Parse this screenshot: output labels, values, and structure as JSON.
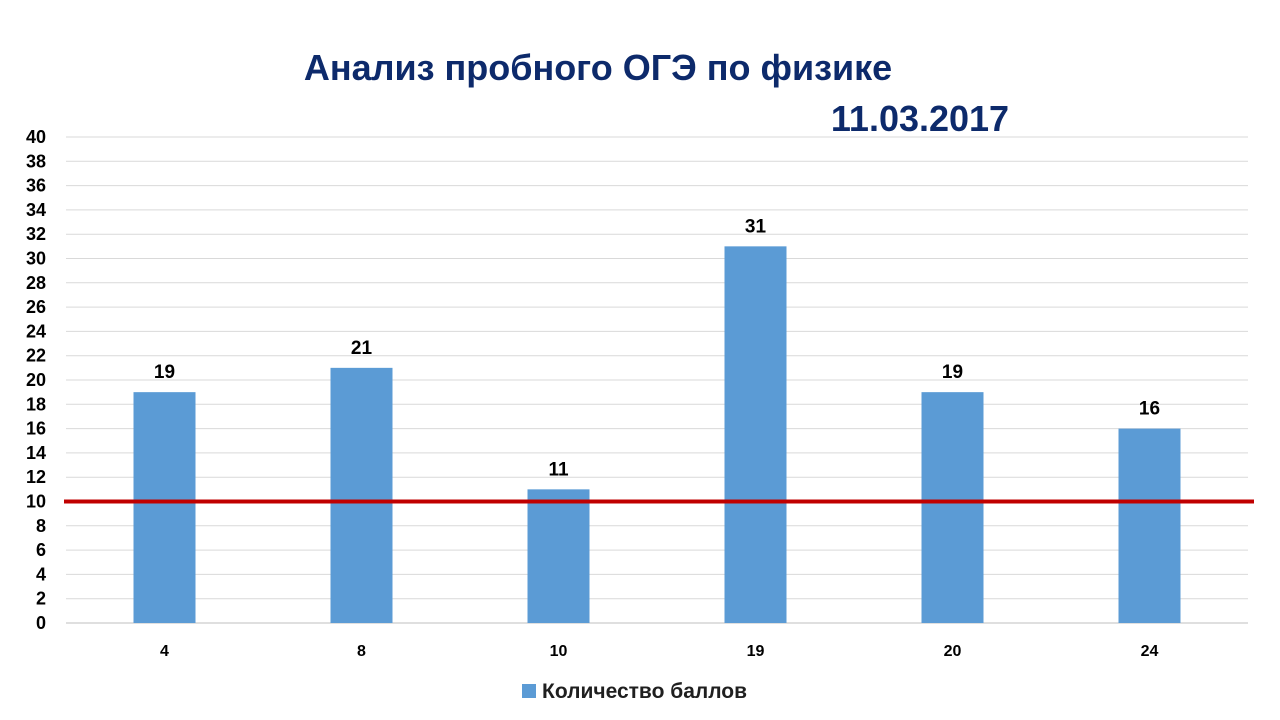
{
  "chart_data": {
    "type": "bar",
    "title": "Анализ пробного ОГЭ по физике",
    "subtitle": "11.03.2017",
    "categories": [
      "4",
      "8",
      "10",
      "19",
      "20",
      "24"
    ],
    "series": [
      {
        "name": "Количество баллов",
        "values": [
          19,
          21,
          11,
          31,
          19,
          16
        ],
        "color": "#5b9bd5"
      }
    ],
    "xlabel": "",
    "ylabel": "",
    "ylim": [
      0,
      40
    ],
    "ytick_step": 2,
    "grid": true,
    "legend_position": "bottom",
    "data_labels": true,
    "reference_line": {
      "y": 10,
      "color": "#c00000"
    },
    "title_color": "#0d2a6b"
  }
}
